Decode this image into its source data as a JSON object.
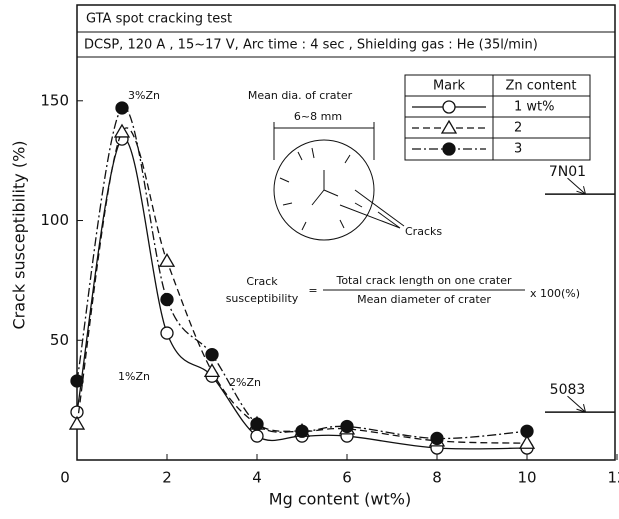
{
  "chart_data": {
    "type": "line",
    "title": "GTA spot cracking test",
    "subtitle": "DCSP, 120 A , 15~17 V, Arc time : 4 sec , Shielding gas : He (35l/min)",
    "x_label": "Mg content (wt%)",
    "y_label": "Crack susceptibility (%)",
    "x": [
      0,
      1,
      2,
      3,
      4,
      5,
      6,
      8,
      10
    ],
    "series": [
      {
        "name": "1 wt%",
        "color": "#111111",
        "line_style": "solid",
        "marker": "circle-open",
        "values": [
          20,
          134,
          53,
          35,
          10,
          10,
          10,
          5,
          5
        ]
      },
      {
        "name": "2",
        "color": "#111111",
        "line_style": "dashed",
        "marker": "triangle-open",
        "values": [
          15,
          137,
          83,
          37,
          15,
          12,
          13,
          8,
          7
        ]
      },
      {
        "name": "3",
        "color": "#111111",
        "line_style": "dashdot",
        "marker": "circle-filled",
        "values": [
          33,
          147,
          67,
          44,
          15,
          12,
          14,
          9,
          12
        ]
      }
    ],
    "legend_headers": [
      "Mark",
      "Zn content"
    ],
    "legend_position": "upper right",
    "curve_labels": [
      "3%Zn",
      "1%Zn",
      "2%Zn"
    ],
    "reference_lines": [
      {
        "label": "7N01",
        "value": 111
      },
      {
        "label": "5083",
        "value": 20
      }
    ],
    "inset": {
      "title": "Mean dia. of crater",
      "dimension": "6~8 mm",
      "pointer": "Cracks"
    },
    "formula": {
      "lhs": [
        "Crack",
        "susceptibility"
      ],
      "equals": "=",
      "numerator": "Total crack length on one crater",
      "denominator": "Mean diameter of crater",
      "factor": "x 100(%)"
    },
    "xlim": [
      0,
      12
    ],
    "xticks": [
      0,
      2,
      4,
      6,
      8,
      10,
      12
    ],
    "ylim": [
      0,
      190
    ],
    "yticks": [
      50,
      100,
      150
    ],
    "grid": false
  }
}
